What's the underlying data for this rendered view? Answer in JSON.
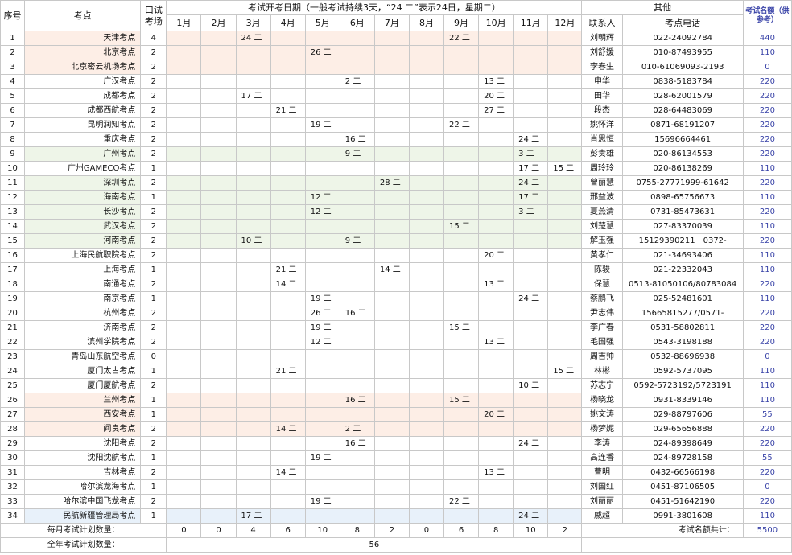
{
  "header": {
    "seq": "序号",
    "site": "考点",
    "rooms": "口试考场",
    "dates_title": "考试开考日期（一般考试持续3天，“24 二”表示24日，星期二）",
    "other": "其他",
    "contact": "联系人",
    "phone": "考点电话",
    "quota": "考试名额（供参考）",
    "months": [
      "1月",
      "2月",
      "3月",
      "4月",
      "5月",
      "6月",
      "7月",
      "8月",
      "9月",
      "10月",
      "11月",
      "12月"
    ]
  },
  "rows": [
    {
      "no": "1",
      "name": "天津考点",
      "rooms": "4",
      "dates": [
        "",
        "",
        "24 二",
        "",
        "",
        "",
        "",
        "",
        "22 二",
        "",
        "",
        ""
      ],
      "contact": "刘朝辉",
      "phone": "022-24092784",
      "quota": "440",
      "hl": "pink"
    },
    {
      "no": "2",
      "name": "北京考点",
      "rooms": "2",
      "dates": [
        "",
        "",
        "",
        "",
        "26 二",
        "",
        "",
        "",
        "",
        "",
        "",
        ""
      ],
      "contact": "刘舒媛",
      "phone": "010-87493955",
      "quota": "110",
      "hl": "pink"
    },
    {
      "no": "3",
      "name": "北京密云机场考点",
      "rooms": "2",
      "dates": [
        "",
        "",
        "",
        "",
        "",
        "",
        "",
        "",
        "",
        "",
        "",
        ""
      ],
      "contact": "李春生",
      "phone": "010-61069093-2193",
      "quota": "0",
      "hl": "pink"
    },
    {
      "no": "4",
      "name": "广汉考点",
      "rooms": "2",
      "dates": [
        "",
        "",
        "",
        "",
        "",
        "2 二",
        "",
        "",
        "",
        "13 二",
        "",
        ""
      ],
      "contact": "申华",
      "phone": "0838-5183784",
      "quota": "220",
      "hl": ""
    },
    {
      "no": "5",
      "name": "成都考点",
      "rooms": "2",
      "dates": [
        "",
        "",
        "17 二",
        "",
        "",
        "",
        "",
        "",
        "",
        "20 二",
        "",
        ""
      ],
      "contact": "田华",
      "phone": "028-62001579",
      "quota": "220",
      "hl": ""
    },
    {
      "no": "6",
      "name": "成都西航考点",
      "rooms": "2",
      "dates": [
        "",
        "",
        "",
        "21 二",
        "",
        "",
        "",
        "",
        "",
        "27 二",
        "",
        ""
      ],
      "contact": "段杰",
      "phone": "028-64483069",
      "quota": "220",
      "hl": ""
    },
    {
      "no": "7",
      "name": "昆明润知考点",
      "rooms": "2",
      "dates": [
        "",
        "",
        "",
        "",
        "19 二",
        "",
        "",
        "",
        "22 二",
        "",
        "",
        ""
      ],
      "contact": "姚怀洋",
      "phone": "0871-68191207",
      "quota": "220",
      "hl": ""
    },
    {
      "no": "8",
      "name": "重庆考点",
      "rooms": "2",
      "dates": [
        "",
        "",
        "",
        "",
        "",
        "16 二",
        "",
        "",
        "",
        "",
        "24 二",
        ""
      ],
      "contact": "肖思恒",
      "phone": "15696664461",
      "quota": "220",
      "hl": ""
    },
    {
      "no": "9",
      "name": "广州考点",
      "rooms": "2",
      "dates": [
        "",
        "",
        "",
        "",
        "",
        "9 二",
        "",
        "",
        "",
        "",
        "3 二",
        ""
      ],
      "contact": "彭贵雄",
      "phone": "020-86134553",
      "quota": "220",
      "hl": "green"
    },
    {
      "no": "10",
      "name": "广州GAMECO考点",
      "rooms": "1",
      "dates": [
        "",
        "",
        "",
        "",
        "",
        "",
        "",
        "",
        "",
        "",
        "17 二",
        "15 二"
      ],
      "contact": "周玲玲",
      "phone": "020-86138269",
      "quota": "110",
      "hl": ""
    },
    {
      "no": "11",
      "name": "深圳考点",
      "rooms": "2",
      "dates": [
        "",
        "",
        "",
        "",
        "",
        "",
        "28 二",
        "",
        "",
        "",
        "24 二",
        ""
      ],
      "contact": "曾丽慧",
      "phone": "0755-27771999-61642",
      "quota": "220",
      "hl": "green"
    },
    {
      "no": "12",
      "name": "海南考点",
      "rooms": "1",
      "dates": [
        "",
        "",
        "",
        "",
        "12 二",
        "",
        "",
        "",
        "",
        "",
        "17 二",
        ""
      ],
      "contact": "邢益波",
      "phone": "0898-65756673",
      "quota": "110",
      "hl": "green"
    },
    {
      "no": "13",
      "name": "长沙考点",
      "rooms": "2",
      "dates": [
        "",
        "",
        "",
        "",
        "12 二",
        "",
        "",
        "",
        "",
        "",
        "3 二",
        ""
      ],
      "contact": "夏燕清",
      "phone": "0731-85473631",
      "quota": "220",
      "hl": "green"
    },
    {
      "no": "14",
      "name": "武汉考点",
      "rooms": "2",
      "dates": [
        "",
        "",
        "",
        "",
        "",
        "",
        "",
        "",
        "15 二",
        "",
        "",
        ""
      ],
      "contact": "刘楚慧",
      "phone": "027-83370039",
      "quota": "110",
      "hl": "green"
    },
    {
      "no": "15",
      "name": "河南考点",
      "rooms": "2",
      "dates": [
        "",
        "",
        "10 二",
        "",
        "",
        "9 二",
        "",
        "",
        "",
        "",
        "",
        ""
      ],
      "contact": "解玉强",
      "phone": "15129390211　0372-",
      "quota": "220",
      "hl": "green"
    },
    {
      "no": "16",
      "name": "上海民航职院考点",
      "rooms": "2",
      "dates": [
        "",
        "",
        "",
        "",
        "",
        "",
        "",
        "",
        "",
        "20 二",
        "",
        ""
      ],
      "contact": "黄孝仁",
      "phone": "021-34693406",
      "quota": "110",
      "hl": ""
    },
    {
      "no": "17",
      "name": "上海考点",
      "rooms": "1",
      "dates": [
        "",
        "",
        "",
        "21 二",
        "",
        "",
        "14 二",
        "",
        "",
        "",
        "",
        ""
      ],
      "contact": "陈骏",
      "phone": "021-22332043",
      "quota": "110",
      "hl": ""
    },
    {
      "no": "18",
      "name": "南通考点",
      "rooms": "2",
      "dates": [
        "",
        "",
        "",
        "14 二",
        "",
        "",
        "",
        "",
        "",
        "13 二",
        "",
        ""
      ],
      "contact": "保慧",
      "phone": "0513-81050106/80783084",
      "quota": "220",
      "hl": ""
    },
    {
      "no": "19",
      "name": "南京考点",
      "rooms": "1",
      "dates": [
        "",
        "",
        "",
        "",
        "19 二",
        "",
        "",
        "",
        "",
        "",
        "24 二",
        ""
      ],
      "contact": "蔡鹏飞",
      "phone": "025-52481601",
      "quota": "110",
      "hl": ""
    },
    {
      "no": "20",
      "name": "杭州考点",
      "rooms": "2",
      "dates": [
        "",
        "",
        "",
        "",
        "26 二",
        "16 二",
        "",
        "",
        "",
        "",
        "",
        ""
      ],
      "contact": "尹志伟",
      "phone": "15665815277/0571-",
      "quota": "220",
      "hl": ""
    },
    {
      "no": "21",
      "name": "济南考点",
      "rooms": "2",
      "dates": [
        "",
        "",
        "",
        "",
        "19 二",
        "",
        "",
        "",
        "15 二",
        "",
        "",
        ""
      ],
      "contact": "李广春",
      "phone": "0531-58802811",
      "quota": "220",
      "hl": ""
    },
    {
      "no": "22",
      "name": "滨州学院考点",
      "rooms": "2",
      "dates": [
        "",
        "",
        "",
        "",
        "12 二",
        "",
        "",
        "",
        "",
        "13 二",
        "",
        ""
      ],
      "contact": "毛国强",
      "phone": "0543-3198188",
      "quota": "220",
      "hl": ""
    },
    {
      "no": "23",
      "name": "青岛山东航空考点",
      "rooms": "0",
      "dates": [
        "",
        "",
        "",
        "",
        "",
        "",
        "",
        "",
        "",
        "",
        "",
        ""
      ],
      "contact": "周吉帅",
      "phone": "0532-88696938",
      "quota": "0",
      "hl": ""
    },
    {
      "no": "24",
      "name": "厦门太古考点",
      "rooms": "1",
      "dates": [
        "",
        "",
        "",
        "21 二",
        "",
        "",
        "",
        "",
        "",
        "",
        "",
        "15 二"
      ],
      "contact": "林彬",
      "phone": "0592-5737095",
      "quota": "110",
      "hl": ""
    },
    {
      "no": "25",
      "name": "厦门厦航考点",
      "rooms": "2",
      "dates": [
        "",
        "",
        "",
        "",
        "",
        "",
        "",
        "",
        "",
        "",
        "10 二",
        ""
      ],
      "contact": "苏志宁",
      "phone": "0592-5723192/5723191",
      "quota": "110",
      "hl": ""
    },
    {
      "no": "26",
      "name": "兰州考点",
      "rooms": "1",
      "dates": [
        "",
        "",
        "",
        "",
        "",
        "16 二",
        "",
        "",
        "15 二",
        "",
        "",
        ""
      ],
      "contact": "杨晓龙",
      "phone": "0931-8339146",
      "quota": "110",
      "hl": "pink"
    },
    {
      "no": "27",
      "name": "西安考点",
      "rooms": "1",
      "dates": [
        "",
        "",
        "",
        "",
        "",
        "",
        "",
        "",
        "",
        "20 二",
        "",
        ""
      ],
      "contact": "姚文涛",
      "phone": "029-88797606",
      "quota": "55",
      "hl": "pink"
    },
    {
      "no": "28",
      "name": "阎良考点",
      "rooms": "2",
      "dates": [
        "",
        "",
        "",
        "14 二",
        "",
        "2 二",
        "",
        "",
        "",
        "",
        "",
        ""
      ],
      "contact": "杨梦妮",
      "phone": "029-65656888",
      "quota": "220",
      "hl": "pink"
    },
    {
      "no": "29",
      "name": "沈阳考点",
      "rooms": "2",
      "dates": [
        "",
        "",
        "",
        "",
        "",
        "16 二",
        "",
        "",
        "",
        "",
        "24 二",
        ""
      ],
      "contact": "李涛",
      "phone": "024-89398649",
      "quota": "220",
      "hl": ""
    },
    {
      "no": "30",
      "name": "沈阳沈航考点",
      "rooms": "1",
      "dates": [
        "",
        "",
        "",
        "",
        "19 二",
        "",
        "",
        "",
        "",
        "",
        "",
        ""
      ],
      "contact": "高连香",
      "phone": "024-89728158",
      "quota": "55",
      "hl": ""
    },
    {
      "no": "31",
      "name": "吉林考点",
      "rooms": "2",
      "dates": [
        "",
        "",
        "",
        "14 二",
        "",
        "",
        "",
        "",
        "",
        "13 二",
        "",
        ""
      ],
      "contact": "曹明",
      "phone": "0432-66566198",
      "quota": "220",
      "hl": ""
    },
    {
      "no": "32",
      "name": "哈尔滨龙海考点",
      "rooms": "1",
      "dates": [
        "",
        "",
        "",
        "",
        "",
        "",
        "",
        "",
        "",
        "",
        "",
        ""
      ],
      "contact": "刘国红",
      "phone": "0451-87106505",
      "quota": "0",
      "hl": ""
    },
    {
      "no": "33",
      "name": "哈尔滨中国飞龙考点",
      "rooms": "2",
      "dates": [
        "",
        "",
        "",
        "",
        "19 二",
        "",
        "",
        "",
        "22 二",
        "",
        "",
        ""
      ],
      "contact": "刘丽丽",
      "phone": "0451-51642190",
      "quota": "220",
      "hl": ""
    },
    {
      "no": "34",
      "name": "民航新疆管理局考点",
      "rooms": "1",
      "dates": [
        "",
        "",
        "17 二",
        "",
        "",
        "",
        "",
        "",
        "",
        "",
        "24 二",
        ""
      ],
      "contact": "戚超",
      "phone": "0991-3801608",
      "quota": "110",
      "hl": "blue"
    }
  ],
  "summary": {
    "monthly_label": "每月考试计划数量：",
    "monthly": [
      "0",
      "0",
      "4",
      "6",
      "10",
      "8",
      "2",
      "0",
      "6",
      "8",
      "10",
      "2"
    ],
    "quota_total_label": "考试名额共计：",
    "quota_total": "5500",
    "annual_label": "全年考试计划数量：",
    "annual": "56"
  }
}
